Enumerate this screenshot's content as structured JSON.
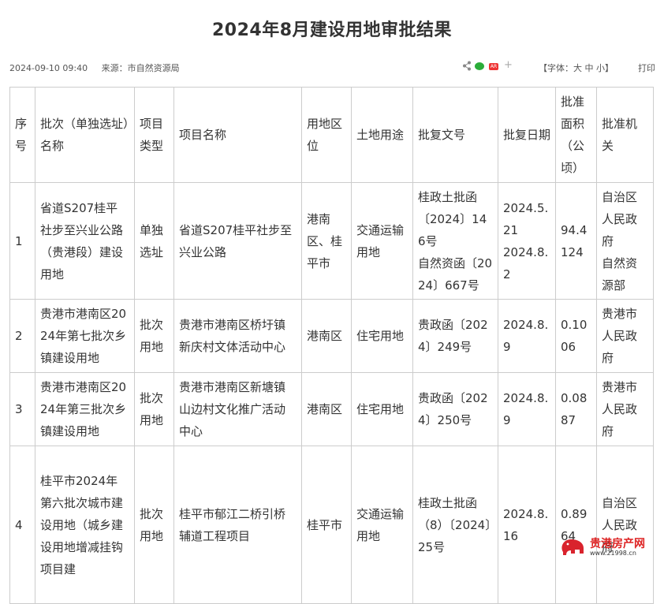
{
  "page": {
    "title": "2024年8月建设用地审批结果",
    "date": "2024-09-10 09:40",
    "source": "来源：市自然资源局",
    "font_size_label": "【字体：大 中 小】",
    "print_label": "打印",
    "weibo_label": "AR"
  },
  "table": {
    "headers": [
      "序号",
      "批次（单独选址）名称",
      "项目类型",
      "项目名称",
      "用地区位",
      "土地用途",
      "批复文号",
      "批复日期",
      "批准面积（公顷）",
      "批准机关"
    ],
    "rows": [
      {
        "no": "1",
        "batch": "省道S207桂平社步至兴业公路（贵港段）建设用地",
        "type": "单独选址",
        "project": "省道S207桂平社步至兴业公路",
        "location": "港南区、桂平市",
        "usage": "交通运输用地",
        "doc": "桂政土批函〔2024〕146号\n自然资函〔2024〕667号",
        "date": "2024.5.21\n2024.8.2",
        "area": "94.4124",
        "authority": "自治区人民政府\n自然资源部"
      },
      {
        "no": "2",
        "batch": "贵港市港南区2024年第七批次乡镇建设用地",
        "type": "批次用地",
        "project": "贵港市港南区桥圩镇新庆村文体活动中心",
        "location": "港南区",
        "usage": "住宅用地",
        "doc": "贵政函〔2024〕249号",
        "date": "2024.8.9",
        "area": "0.1006",
        "authority": "贵港市人民政府"
      },
      {
        "no": "3",
        "batch": "贵港市港南区2024年第三批次乡镇建设用地",
        "type": "批次用地",
        "project": "贵港市港南区新塘镇山边村文化推广活动中心",
        "location": "港南区",
        "usage": "住宅用地",
        "doc": "贵政函〔2024〕250号",
        "date": "2024.8.9",
        "area": "0.0887",
        "authority": "贵港市人民政府"
      },
      {
        "no": "4",
        "batch": "桂平市2024年第六批次城市建设用地（城乡建设用地增减挂钩项目建",
        "type": "批次用地",
        "project": "桂平市郁江二桥引桥辅道工程项目",
        "location": "桂平市",
        "usage": "交通运输用地",
        "doc": "桂政土批函（8）〔2024〕25号",
        "date": "2024.8.16",
        "area": "0.8964",
        "authority": "自治区人民政府"
      }
    ]
  },
  "watermark": {
    "brand": "贵港房产网",
    "url": "www.21998.cn",
    "logo_color": "#d9232d"
  }
}
